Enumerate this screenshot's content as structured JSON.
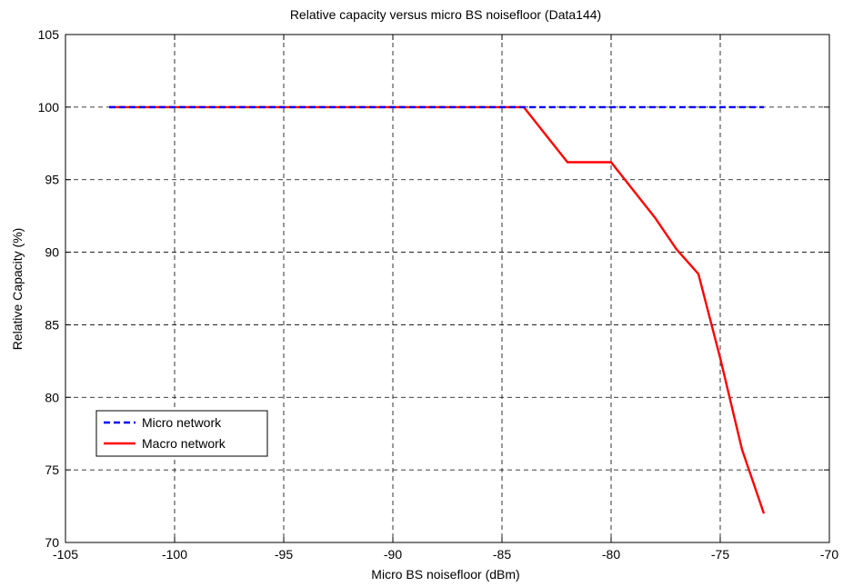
{
  "chart_data": {
    "type": "line",
    "title": "Relative capacity versus micro BS noisefloor (Data144)",
    "xlabel": "Micro BS noisefloor (dBm)",
    "ylabel": "Relative Capacity (%)",
    "xlim": [
      -105,
      -70
    ],
    "ylim": [
      70,
      105
    ],
    "xticks": [
      -105,
      -100,
      -95,
      -90,
      -85,
      -80,
      -75,
      -70
    ],
    "yticks": [
      70,
      75,
      80,
      85,
      90,
      95,
      100,
      105
    ],
    "grid": true,
    "legend_position": "lower-left",
    "series": [
      {
        "name": "Micro network",
        "color": "#0000ff",
        "style": "dashed",
        "x": [
          -103,
          -102,
          -101,
          -100,
          -99,
          -98,
          -97,
          -96,
          -95,
          -94,
          -93,
          -92,
          -91,
          -90,
          -89,
          -88,
          -87,
          -86,
          -85,
          -84,
          -83,
          -82,
          -81,
          -80,
          -79,
          -78,
          -77,
          -76,
          -75,
          -74,
          -73
        ],
        "y": [
          100,
          100,
          100,
          100,
          100,
          100,
          100,
          100,
          100,
          100,
          100,
          100,
          100,
          100,
          100,
          100,
          100,
          100,
          100,
          100,
          100,
          100,
          100,
          100,
          100,
          100,
          100,
          100,
          100,
          100,
          100
        ]
      },
      {
        "name": "Macro network",
        "color": "#ff0000",
        "style": "solid",
        "x": [
          -103,
          -102,
          -101,
          -100,
          -99,
          -98,
          -97,
          -96,
          -95,
          -94,
          -93,
          -92,
          -91,
          -90,
          -89,
          -88,
          -87,
          -86,
          -85,
          -84,
          -83,
          -82,
          -81,
          -80,
          -79,
          -78,
          -77,
          -76,
          -75,
          -74,
          -73
        ],
        "y": [
          100,
          100,
          100,
          100,
          100,
          100,
          100,
          100,
          100,
          100,
          100,
          100,
          100,
          100,
          100,
          100,
          100,
          100,
          100,
          100,
          98.1,
          96.2,
          96.2,
          96.2,
          94.3,
          92.4,
          90.2,
          88.5,
          82.7,
          76.4,
          72.0
        ]
      }
    ]
  }
}
